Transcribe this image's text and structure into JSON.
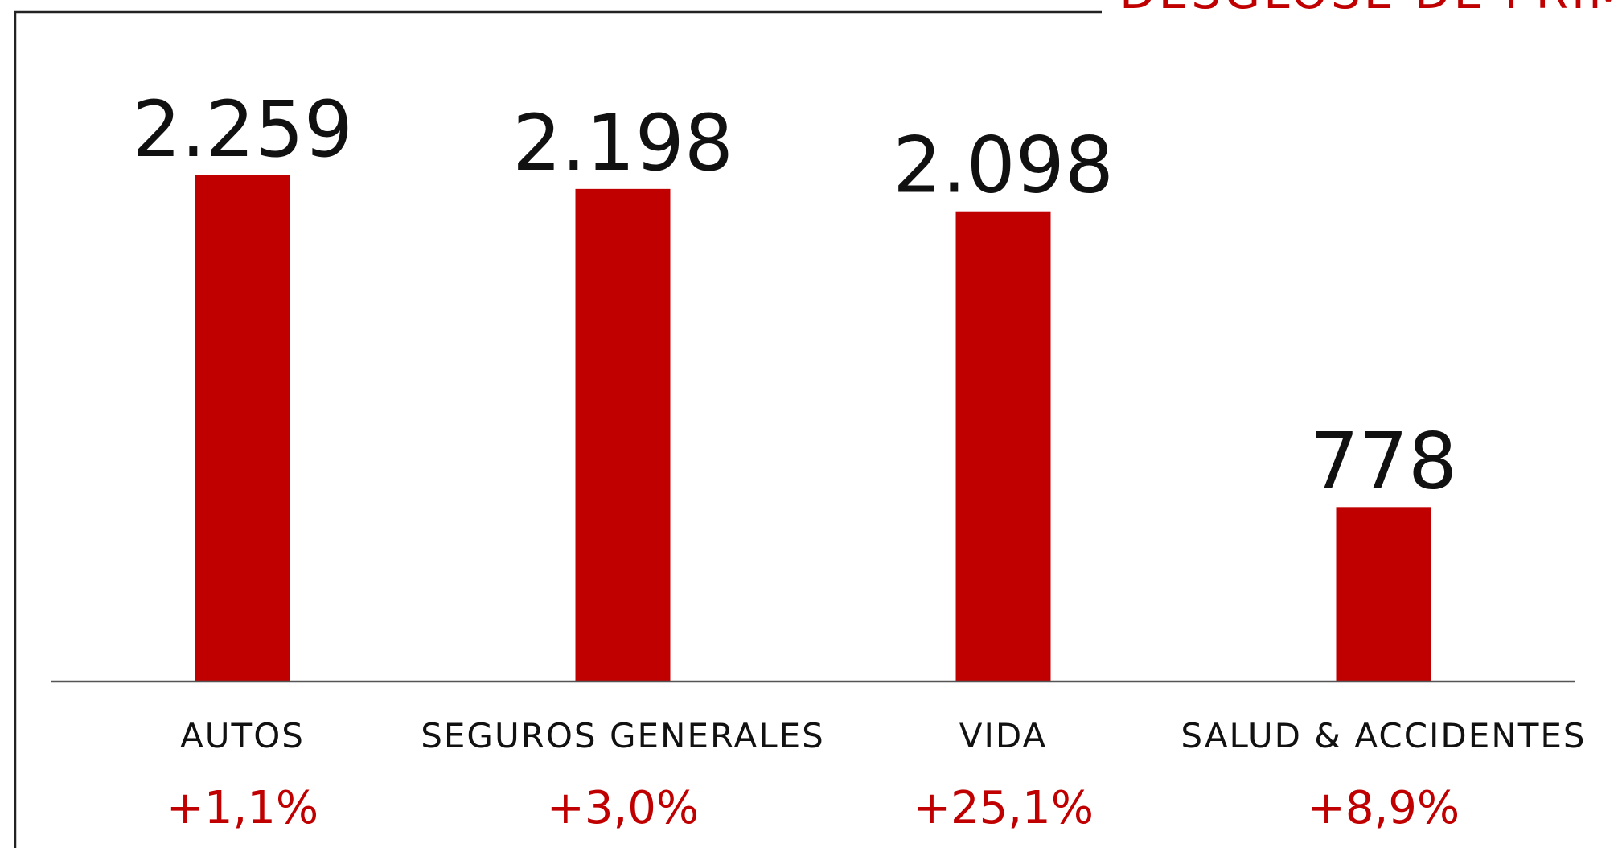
{
  "chart_data": {
    "type": "bar",
    "title": "DESGLOSE DE PRIMA",
    "categories": [
      "AUTOS",
      "SEGUROS GENERALES",
      "VIDA",
      "SALUD & ACCIDENTES"
    ],
    "values": [
      2259,
      2198,
      2098,
      778
    ],
    "value_labels": [
      "2.259",
      "2.198",
      "2.098",
      "778"
    ],
    "annotations": [
      "+1,1%",
      "+3,0%",
      "+25,1%",
      "+8,9%"
    ],
    "color": "#c00000",
    "ylim": [
      0,
      2600
    ],
    "grid": false
  }
}
